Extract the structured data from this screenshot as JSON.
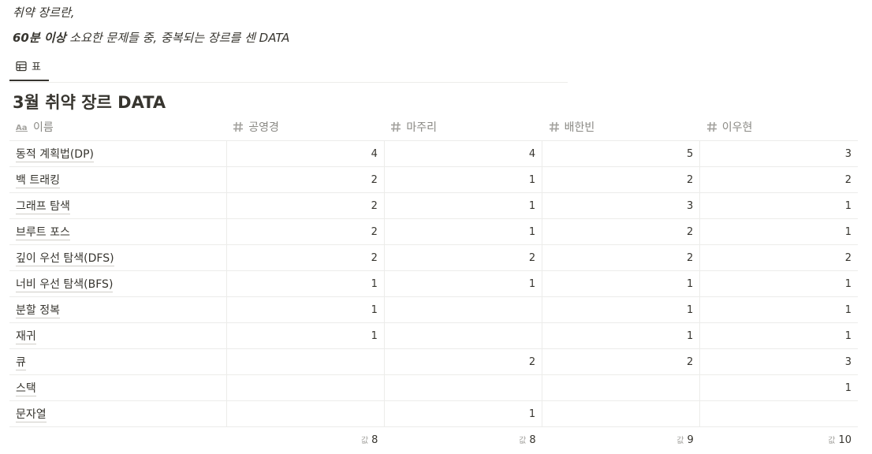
{
  "intro": {
    "line1": "취약 장르란,",
    "line2_bold": "60분 이상",
    "line2_rest": " 소요한 문제들 중, 중복되는 장르를 센 DATA"
  },
  "view_tab": {
    "label": "표",
    "icon": "table-icon"
  },
  "database": {
    "title": "3월 취약 장르 DATA",
    "columns": [
      {
        "label": "이름",
        "icon": "title-property-icon"
      },
      {
        "label": "공영경",
        "icon": "number-property-icon"
      },
      {
        "label": "마주리",
        "icon": "number-property-icon"
      },
      {
        "label": "배한빈",
        "icon": "number-property-icon"
      },
      {
        "label": "이우현",
        "icon": "number-property-icon"
      }
    ],
    "rows": [
      {
        "name": "동적 계획법(DP)",
        "values": [
          "4",
          "4",
          "5",
          "3"
        ]
      },
      {
        "name": "백 트래킹",
        "values": [
          "2",
          "1",
          "2",
          "2"
        ]
      },
      {
        "name": "그래프 탐색",
        "values": [
          "2",
          "1",
          "3",
          "1"
        ]
      },
      {
        "name": "브루트 포스",
        "values": [
          "2",
          "1",
          "2",
          "1"
        ]
      },
      {
        "name": "깊이 우선 탐색(DFS)",
        "values": [
          "2",
          "2",
          "2",
          "2"
        ]
      },
      {
        "name": "너비 우선 탐색(BFS)",
        "values": [
          "1",
          "1",
          "1",
          "1"
        ]
      },
      {
        "name": "분할 정복",
        "values": [
          "1",
          "",
          "1",
          "1"
        ]
      },
      {
        "name": "재귀",
        "values": [
          "1",
          "",
          "1",
          "1"
        ]
      },
      {
        "name": "큐",
        "values": [
          "",
          "2",
          "2",
          "3"
        ]
      },
      {
        "name": "스택",
        "values": [
          "",
          "",
          "",
          "1"
        ]
      },
      {
        "name": "문자열",
        "values": [
          "",
          "1",
          "",
          ""
        ]
      }
    ],
    "footer": {
      "calc_label": "값",
      "values": [
        "8",
        "8",
        "9",
        "10"
      ]
    }
  },
  "colors": {
    "text": "#37352f",
    "muted": "#8a8984",
    "border": "#ececea"
  }
}
